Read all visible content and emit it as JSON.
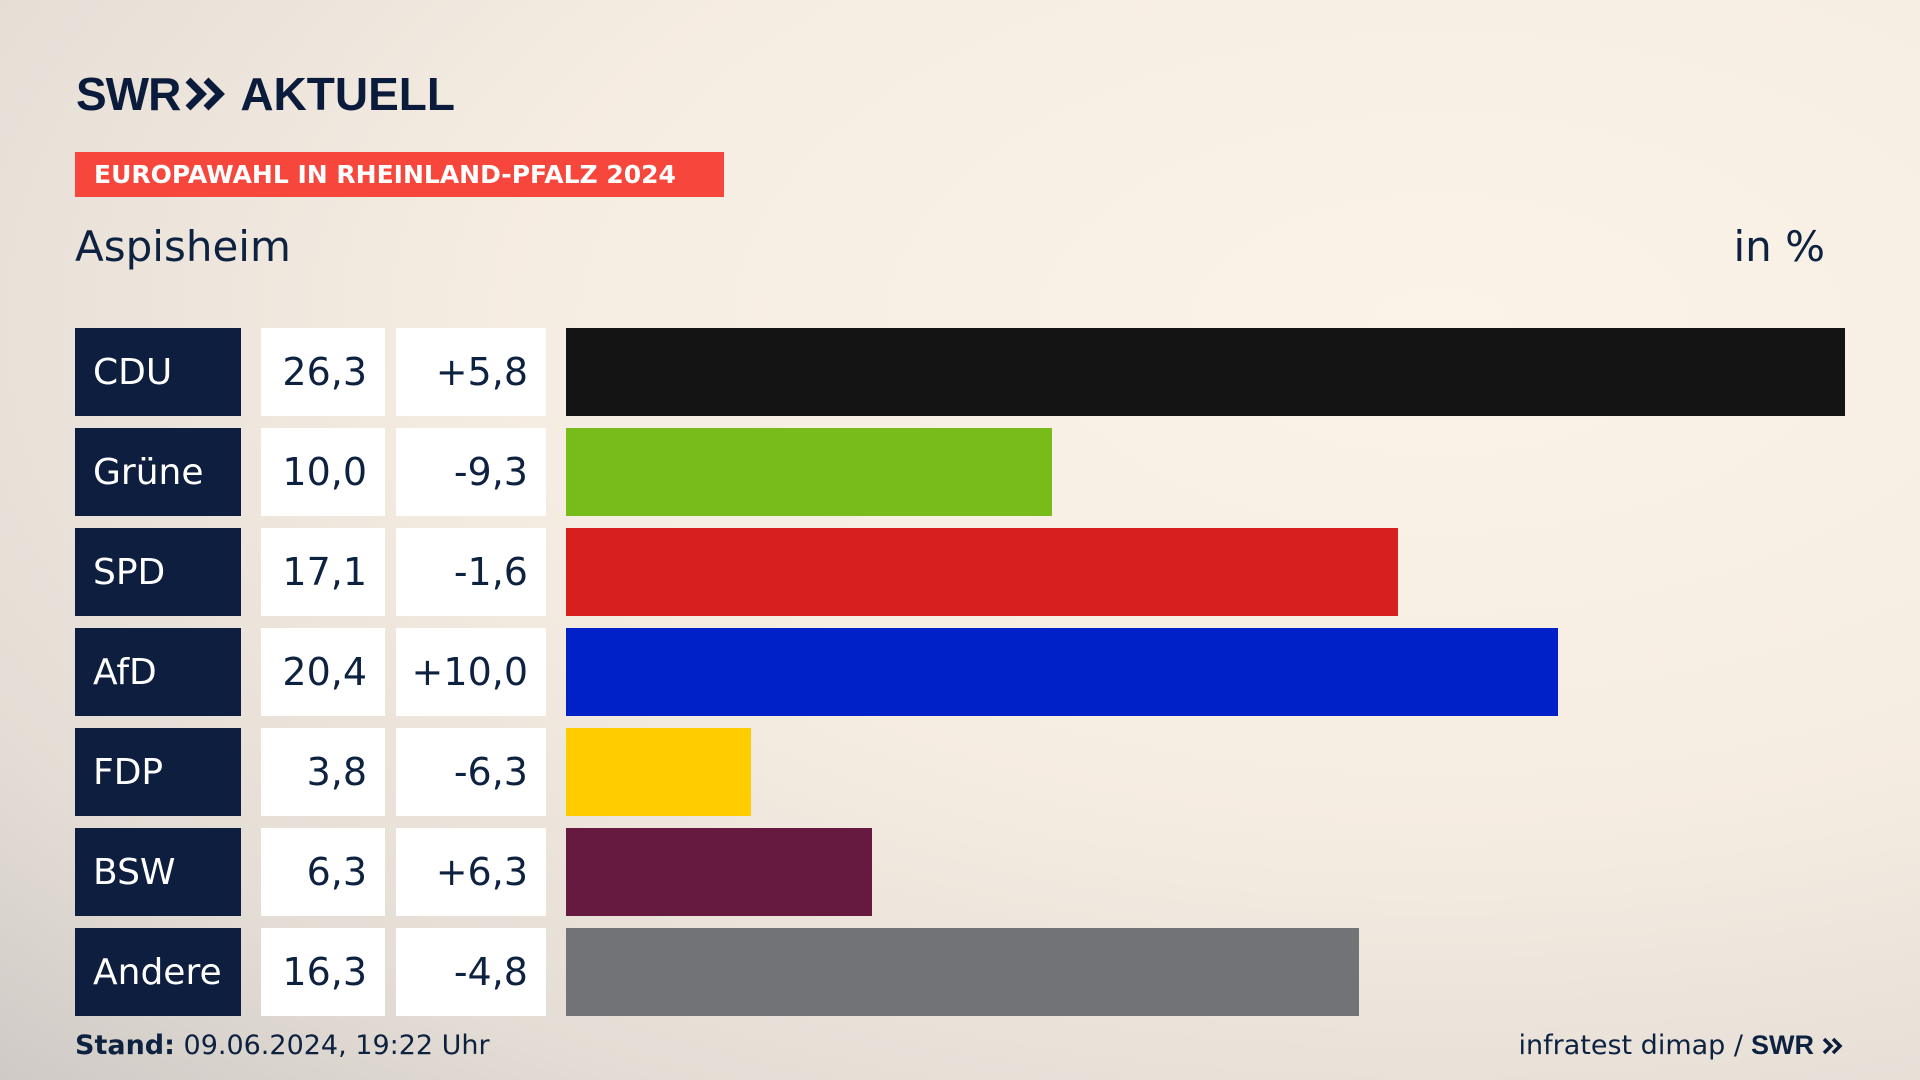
{
  "header": {
    "logo_brand": "SWR",
    "logo_product": "AKTUELL",
    "banner": "EUROPAWAHL IN RHEINLAND-PFALZ 2024",
    "place": "Aspisheim",
    "unit": "in %"
  },
  "colors": {
    "banner": "#f7473d",
    "party_box": "#0d1e3f"
  },
  "chart_data": {
    "type": "bar",
    "orientation": "horizontal",
    "title": "EUROPAWAHL IN RHEINLAND-PFALZ 2024",
    "subtitle": "Aspisheim",
    "unit": "in %",
    "categories": [
      "CDU",
      "Grüne",
      "SPD",
      "AfD",
      "FDP",
      "BSW",
      "Andere"
    ],
    "values": [
      26.3,
      10.0,
      17.1,
      20.4,
      3.8,
      6.3,
      16.3
    ],
    "value_labels": [
      "26,3",
      "10,0",
      "17,1",
      "20,4",
      "3,8",
      "6,3",
      "16,3"
    ],
    "change_labels": [
      "+5,8",
      "-9,3",
      "-1,6",
      "+10,0",
      "-6,3",
      "+6,3",
      "-4,8"
    ],
    "colors": [
      "#141414",
      "#78bc1b",
      "#d71f1d",
      "#0021c8",
      "#ffcc00",
      "#661a3f",
      "#727376"
    ],
    "xlim": [
      0,
      26.3
    ]
  },
  "footer": {
    "stand_label": "Stand:",
    "stand_value": "09.06.2024, 19:22 Uhr",
    "source": "infratest dimap /",
    "source_brand": "SWR"
  }
}
